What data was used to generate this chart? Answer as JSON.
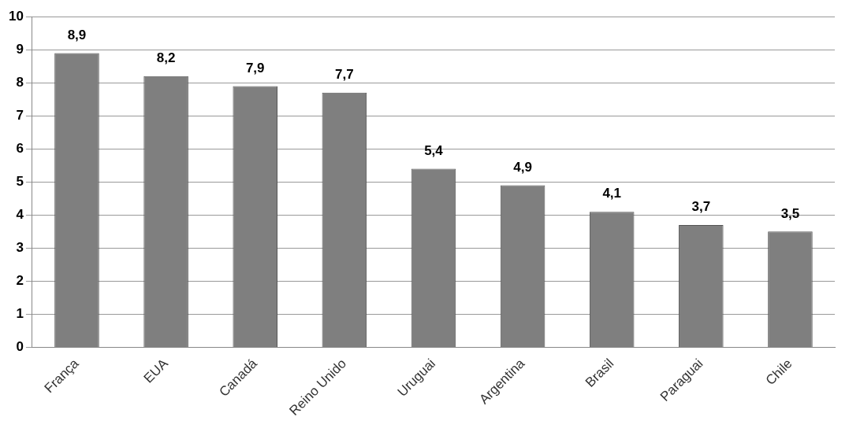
{
  "chart_data": {
    "type": "bar",
    "categories": [
      "França",
      "EUA",
      "Canadá",
      "Reino Unido",
      "Uruguai",
      "Argentina",
      "Brasil",
      "Paraguai",
      "Chile"
    ],
    "values": [
      8.9,
      8.2,
      7.9,
      7.7,
      5.4,
      4.9,
      4.1,
      3.7,
      3.5
    ],
    "value_labels": [
      "8,9",
      "8,2",
      "7,9",
      "7,7",
      "5,4",
      "4,9",
      "4,1",
      "3,7",
      "3,5"
    ],
    "color": "#7f7f7f",
    "ylim": [
      0,
      10
    ],
    "yticks": [
      0,
      1,
      2,
      3,
      4,
      5,
      6,
      7,
      8,
      9,
      10
    ],
    "grid": "y"
  }
}
